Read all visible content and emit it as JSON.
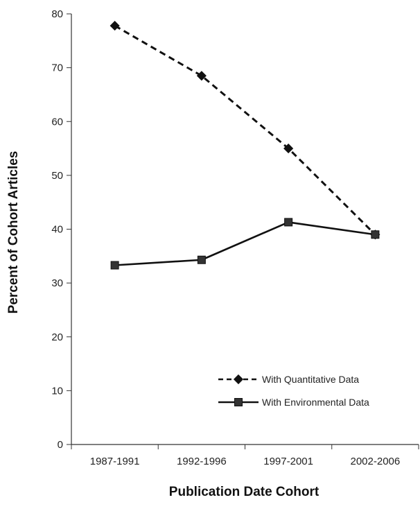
{
  "chart_data": {
    "type": "line",
    "title": "",
    "xlabel": "Publication Date Cohort",
    "ylabel": "Percent of Cohort Articles",
    "categories": [
      "1987-1991",
      "1992-1996",
      "1997-2001",
      "2002-2006"
    ],
    "ylim": [
      0,
      80
    ],
    "yticks": [
      0,
      10,
      20,
      30,
      40,
      50,
      60,
      70,
      80
    ],
    "grid": false,
    "legend_position": "bottom-right",
    "series": [
      {
        "name": "With Quantitative Data",
        "values": [
          77.8,
          68.5,
          55.0,
          39.0
        ],
        "marker": "diamond",
        "line_style": "dashed",
        "color": "#111111"
      },
      {
        "name": "With Environmental Data",
        "values": [
          33.3,
          34.3,
          41.3,
          39.0
        ],
        "marker": "square",
        "line_style": "solid",
        "color": "#111111"
      }
    ]
  }
}
